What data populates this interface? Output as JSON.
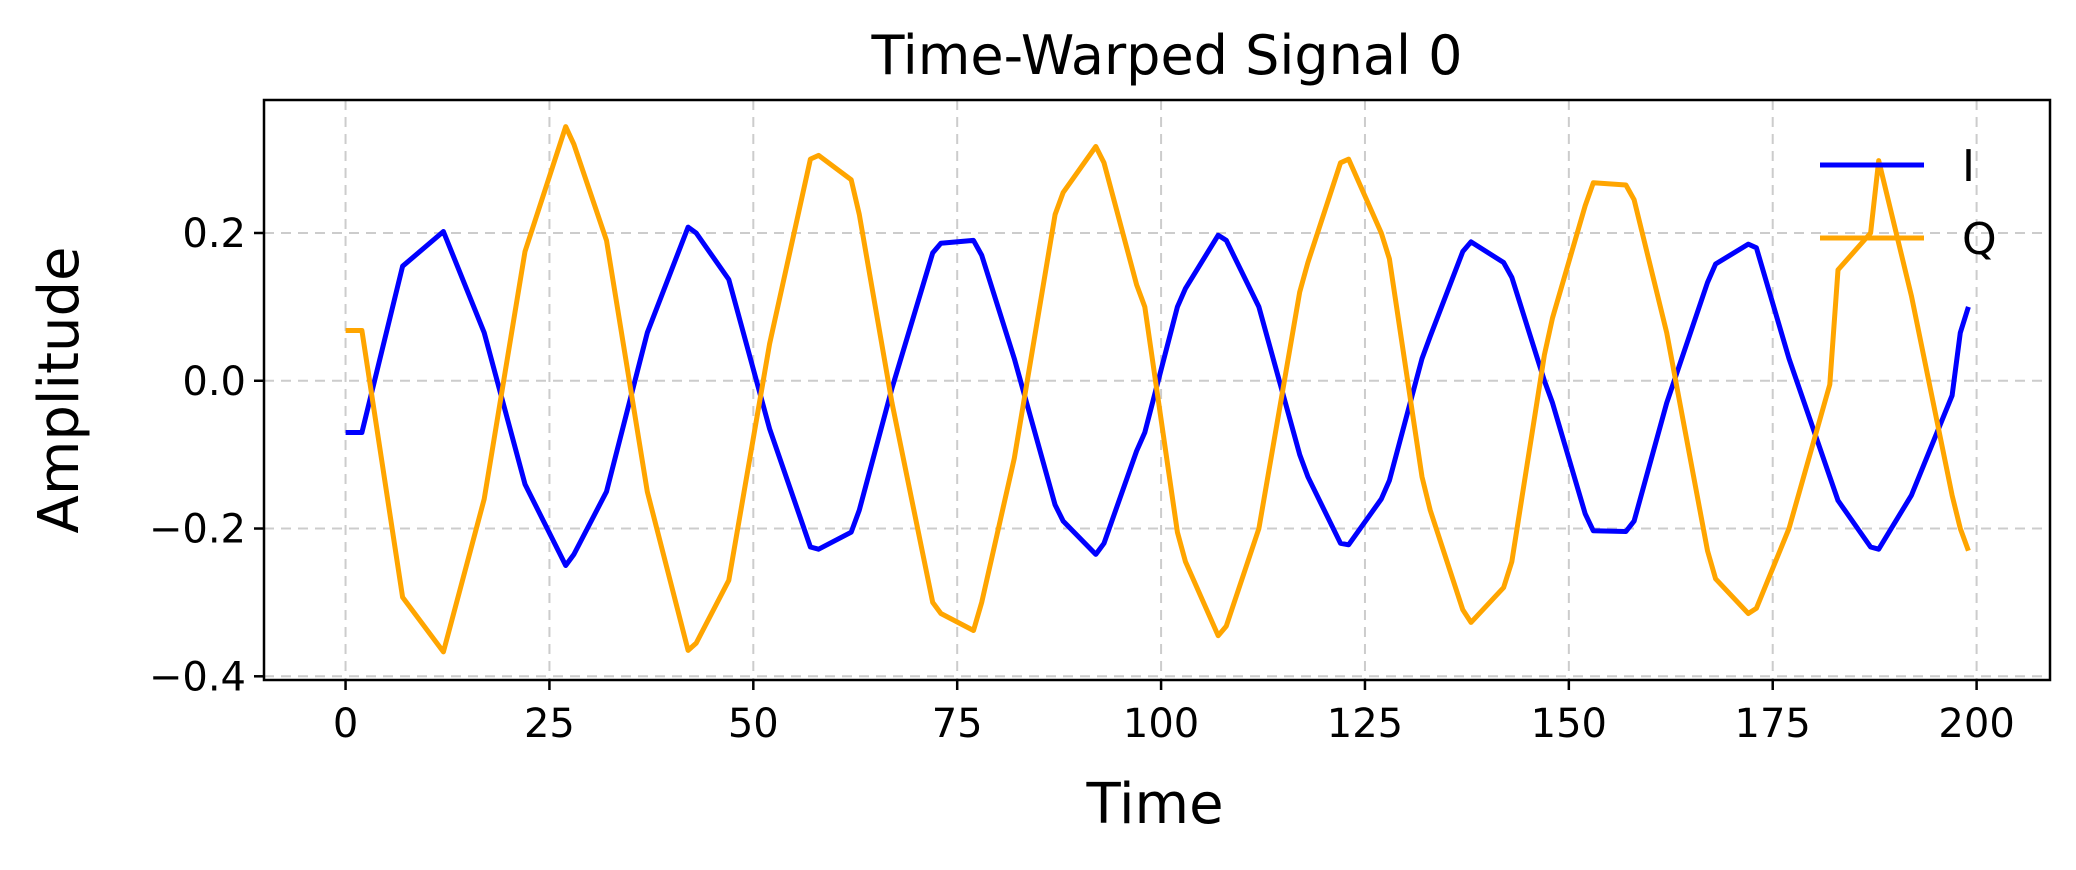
{
  "chart_data": {
    "type": "line",
    "title": "Time-Warped Signal 0",
    "xlabel": "Time",
    "ylabel": "Amplitude",
    "xlim": [
      -10,
      209
    ],
    "ylim": [
      -0.405,
      0.38
    ],
    "xticks": [
      0,
      25,
      50,
      75,
      100,
      125,
      150,
      175,
      200
    ],
    "yticks": [
      -0.4,
      -0.2,
      0.0,
      0.2
    ],
    "ytick_labels": [
      "−0.4",
      "−0.2",
      "0.0",
      "0.2"
    ],
    "grid": true,
    "legend": "top-right",
    "series": [
      {
        "name": "I",
        "color": "#0000ff",
        "x": [
          0,
          2,
          7,
          12,
          17,
          22,
          27,
          28,
          32,
          37,
          42,
          43,
          47,
          52,
          57,
          58,
          62,
          63,
          67,
          72,
          73,
          77,
          78,
          82,
          87,
          88,
          92,
          93,
          97,
          98,
          102,
          103,
          107,
          108,
          112,
          117,
          118,
          122,
          123,
          127,
          128,
          132,
          133,
          137,
          138,
          142,
          143,
          147,
          148,
          152,
          153,
          157,
          158,
          162,
          167,
          168,
          172,
          173,
          177,
          182,
          183,
          187,
          188,
          192,
          197,
          198,
          199
        ],
        "y": [
          -0.07,
          -0.07,
          0.155,
          0.202,
          0.065,
          -0.14,
          -0.25,
          -0.235,
          -0.15,
          0.065,
          0.208,
          0.2,
          0.137,
          -0.065,
          -0.225,
          -0.228,
          -0.205,
          -0.175,
          -0.01,
          0.173,
          0.186,
          0.19,
          0.17,
          0.03,
          -0.168,
          -0.19,
          -0.235,
          -0.22,
          -0.095,
          -0.07,
          0.1,
          0.125,
          0.197,
          0.19,
          0.1,
          -0.1,
          -0.13,
          -0.22,
          -0.222,
          -0.16,
          -0.135,
          0.03,
          0.06,
          0.175,
          0.188,
          0.16,
          0.14,
          0.0,
          -0.03,
          -0.18,
          -0.203,
          -0.204,
          -0.19,
          -0.03,
          0.133,
          0.158,
          0.185,
          0.18,
          0.03,
          -0.13,
          -0.162,
          -0.225,
          -0.228,
          -0.155,
          -0.02,
          0.065,
          0.1
        ]
      },
      {
        "name": "Q",
        "color": "#ffa500",
        "x": [
          0,
          2,
          7,
          12,
          17,
          22,
          27,
          28,
          32,
          37,
          42,
          43,
          47,
          52,
          57,
          58,
          62,
          63,
          67,
          72,
          73,
          77,
          78,
          82,
          87,
          88,
          92,
          93,
          97,
          98,
          102,
          103,
          107,
          108,
          112,
          117,
          118,
          122,
          123,
          127,
          128,
          132,
          133,
          137,
          138,
          142,
          143,
          147,
          148,
          152,
          153,
          157,
          158,
          162,
          167,
          168,
          172,
          173,
          177,
          182,
          183,
          187,
          188,
          192,
          197,
          198,
          199
        ],
        "y": [
          0.068,
          0.068,
          -0.293,
          -0.367,
          -0.16,
          0.175,
          0.344,
          0.32,
          0.19,
          -0.15,
          -0.365,
          -0.355,
          -0.27,
          0.05,
          0.3,
          0.305,
          0.272,
          0.225,
          -0.03,
          -0.3,
          -0.315,
          -0.338,
          -0.3,
          -0.105,
          0.225,
          0.255,
          0.317,
          0.295,
          0.13,
          0.1,
          -0.205,
          -0.245,
          -0.345,
          -0.332,
          -0.2,
          0.12,
          0.16,
          0.295,
          0.3,
          0.2,
          0.165,
          -0.13,
          -0.175,
          -0.31,
          -0.327,
          -0.28,
          -0.245,
          0.035,
          0.085,
          0.237,
          0.268,
          0.265,
          0.245,
          0.065,
          -0.23,
          -0.268,
          -0.315,
          -0.308,
          -0.2,
          -0.005,
          0.15,
          0.2,
          0.298,
          0.115,
          -0.155,
          -0.2,
          -0.23
        ]
      }
    ]
  }
}
